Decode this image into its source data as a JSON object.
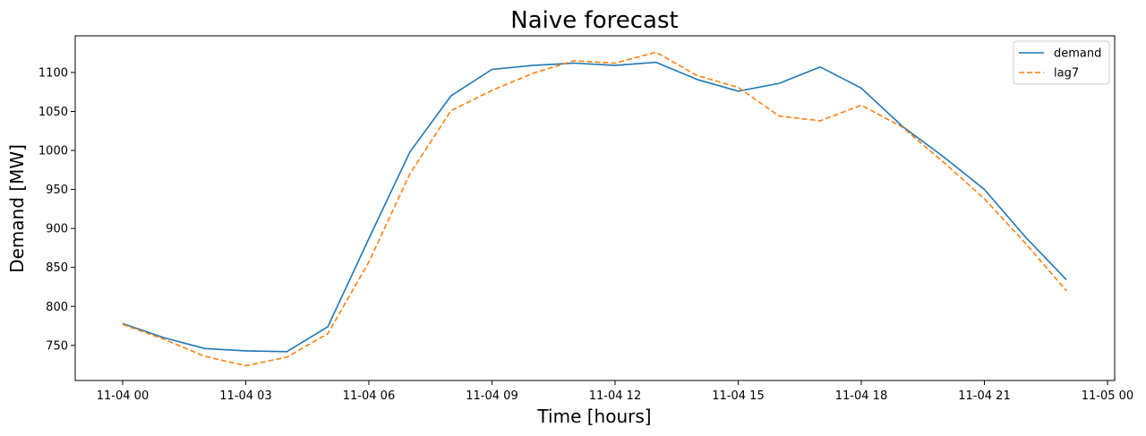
{
  "chart_data": {
    "type": "line",
    "title": "Naive forecast",
    "xlabel": "Time [hours]",
    "ylabel": "Demand [MW]",
    "x_tick_labels": [
      "11-04 00",
      "11-04 03",
      "11-04 06",
      "11-04 09",
      "11-04 12",
      "11-04 15",
      "11-04 18",
      "11-04 21",
      "11-05 00"
    ],
    "y_ticks": [
      750,
      800,
      850,
      900,
      950,
      1000,
      1050,
      1100
    ],
    "ylim": [
      705,
      1147
    ],
    "x": [
      "11-04 00",
      "11-04 01",
      "11-04 02",
      "11-04 03",
      "11-04 04",
      "11-04 05",
      "11-04 06",
      "11-04 07",
      "11-04 08",
      "11-04 09",
      "11-04 10",
      "11-04 11",
      "11-04 12",
      "11-04 13",
      "11-04 14",
      "11-04 15",
      "11-04 16",
      "11-04 17",
      "11-04 18",
      "11-04 19",
      "11-04 20",
      "11-04 21",
      "11-04 22",
      "11-04 23"
    ],
    "series": [
      {
        "name": "demand",
        "color": "#1f77b4",
        "style": "solid",
        "values": [
          778,
          760,
          746,
          743,
          742,
          774,
          887,
          998,
          1070,
          1104,
          1109,
          1112,
          1109,
          1113,
          1091,
          1076,
          1086,
          1107,
          1080,
          1031,
          992,
          950,
          889,
          834
        ]
      },
      {
        "name": "lag7",
        "color": "#ff7f0e",
        "style": "dashed",
        "values": [
          777,
          758,
          736,
          724,
          735,
          765,
          857,
          970,
          1051,
          1077,
          1099,
          1115,
          1112,
          1126,
          1096,
          1081,
          1044,
          1038,
          1058,
          1030,
          985,
          938,
          881,
          820
        ]
      }
    ],
    "grid": false,
    "legend_position": "top-right"
  }
}
